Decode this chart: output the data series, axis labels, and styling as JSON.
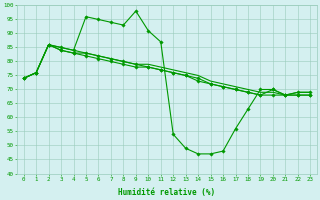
{
  "x": [
    0,
    1,
    2,
    3,
    4,
    5,
    6,
    7,
    8,
    9,
    10,
    11,
    12,
    13,
    14,
    15,
    16,
    17,
    18,
    19,
    20,
    21,
    22,
    23
  ],
  "line1": [
    74,
    76,
    86,
    85,
    84,
    96,
    95,
    94,
    93,
    98,
    91,
    87,
    54,
    49,
    47,
    47,
    48,
    56,
    63,
    70,
    70,
    68,
    69,
    69
  ],
  "line2": [
    74,
    76,
    86,
    84,
    83,
    83,
    82,
    81,
    80,
    79,
    78,
    77,
    76,
    75,
    74,
    72,
    71,
    70,
    69,
    68,
    70,
    68,
    68,
    68
  ],
  "line3": [
    74,
    76,
    86,
    84,
    83,
    82,
    81,
    80,
    79,
    78,
    78,
    77,
    76,
    75,
    73,
    72,
    71,
    70,
    69,
    68,
    68,
    68,
    68,
    68
  ],
  "line4": [
    74,
    76,
    86,
    85,
    84,
    83,
    82,
    81,
    80,
    79,
    79,
    78,
    77,
    76,
    75,
    73,
    72,
    71,
    70,
    69,
    69,
    68,
    69,
    69
  ],
  "bg_color": "#d4f0f0",
  "grid_color": "#99ccbb",
  "line_color": "#009900",
  "ylim": [
    40,
    100
  ],
  "xlim": [
    -0.5,
    23.5
  ],
  "yticks": [
    40,
    45,
    50,
    55,
    60,
    65,
    70,
    75,
    80,
    85,
    90,
    95,
    100
  ],
  "xticks": [
    0,
    1,
    2,
    3,
    4,
    5,
    6,
    7,
    8,
    9,
    10,
    11,
    12,
    13,
    14,
    15,
    16,
    17,
    18,
    19,
    20,
    21,
    22,
    23
  ],
  "xlabel": "Humidité relative (%)"
}
